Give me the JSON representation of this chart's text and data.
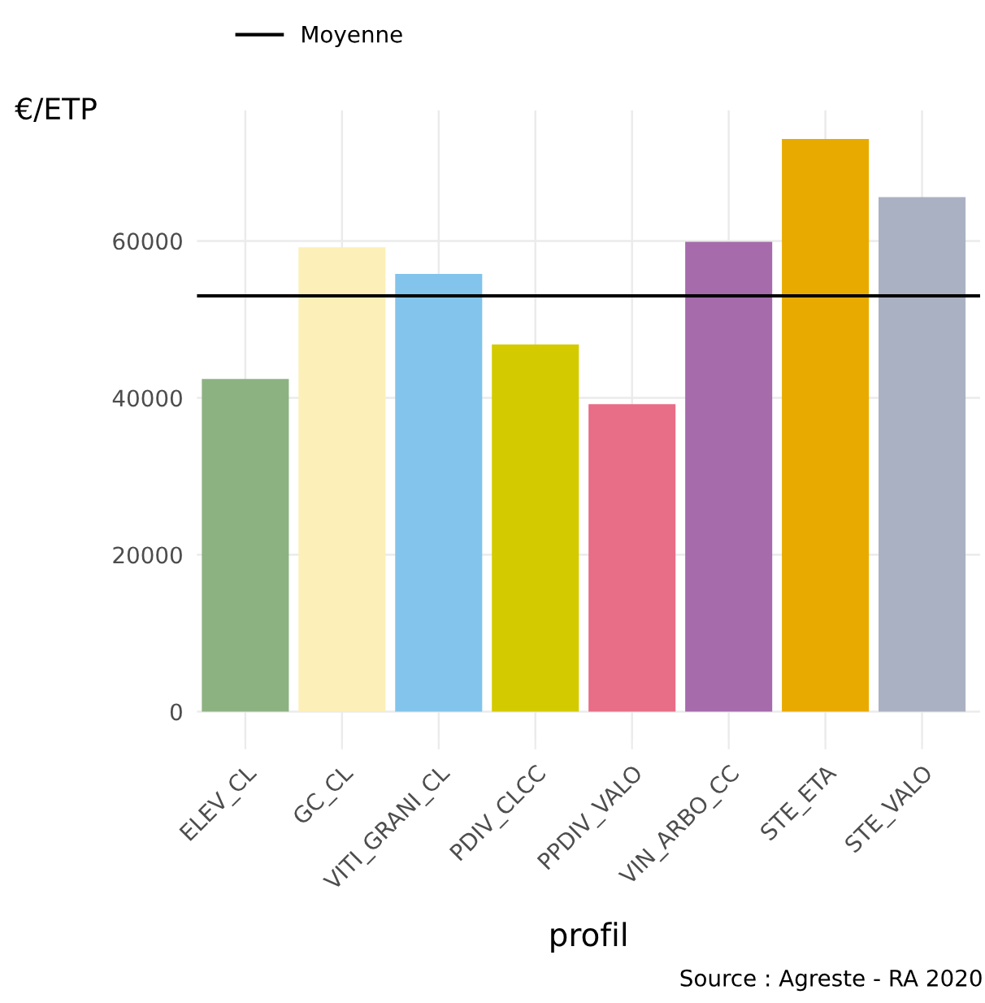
{
  "chart_data": {
    "type": "bar",
    "categories": [
      "ELEV_CL",
      "GC_CL",
      "VITI_GRANI_CL",
      "PDIV_CLCC",
      "PPDIV_VALO",
      "VIN_ARBO_CC",
      "STE_ETA",
      "STE_VALO"
    ],
    "values": [
      42400,
      59200,
      55800,
      46800,
      39200,
      59900,
      73000,
      65600
    ],
    "colors": [
      "#8db282",
      "#fcefb8",
      "#82c4eb",
      "#d3cb00",
      "#e86d87",
      "#a56bab",
      "#e9aa00",
      "#aab1c2"
    ],
    "ylabel": "€/ETP",
    "xlabel": "profil",
    "ylim": [
      -3650,
      76650
    ],
    "yticks": [
      0,
      20000,
      40000,
      60000
    ],
    "ref_lines": [
      {
        "axis": "y",
        "value": 53000,
        "label": "Moyenne",
        "color": "#000000",
        "line_style": "solid"
      }
    ],
    "legend": "top left",
    "grid": true,
    "annotations": [
      "Source : Agreste - RA 2020"
    ]
  }
}
